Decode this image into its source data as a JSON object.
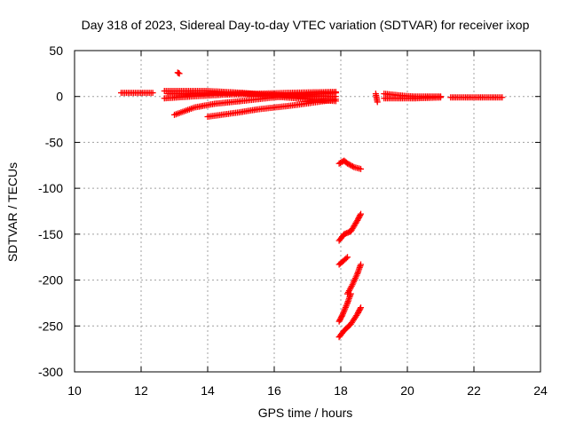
{
  "chart_data": {
    "type": "scatter",
    "title": "Day 318 of 2023, Sidereal Day-to-day VTEC variation (SDTVAR) for receiver ixop",
    "xlabel": "GPS time / hours",
    "ylabel": "SDTVAR / TECUs",
    "xlim": [
      10,
      24
    ],
    "ylim": [
      -300,
      50
    ],
    "xticks": [
      10,
      12,
      14,
      16,
      18,
      20,
      22,
      24
    ],
    "yticks": [
      50,
      0,
      -50,
      -100,
      -150,
      -200,
      -250,
      -300
    ],
    "grid": true,
    "marker": "plus",
    "color": "#ff0000",
    "segments": [
      {
        "x": [
          11.4,
          12.35
        ],
        "y": [
          4,
          4
        ]
      },
      {
        "x": [
          12.7,
          14.0,
          15.0,
          16.0,
          17.0,
          17.85
        ],
        "y": [
          6,
          6,
          4,
          0,
          -3,
          -5
        ]
      },
      {
        "x": [
          12.7,
          13.5,
          14.5,
          15.5,
          16.5,
          17.85
        ],
        "y": [
          -2,
          0,
          2,
          3,
          4,
          5
        ]
      },
      {
        "x": [
          12.8,
          14.0,
          15.0,
          15.8,
          16.5,
          17.85
        ],
        "y": [
          3,
          4,
          4,
          2,
          1,
          0
        ]
      },
      {
        "x": [
          13.0,
          13.6,
          14.2,
          15.0,
          16.0,
          17.0,
          17.85
        ],
        "y": [
          -20,
          -12,
          -8,
          -5,
          -1,
          2,
          4
        ]
      },
      {
        "x": [
          14.0,
          15.0,
          15.5,
          16.5,
          17.5,
          17.85
        ],
        "y": [
          -22,
          -17,
          -14,
          -10,
          -5,
          -3
        ]
      },
      {
        "x": [
          13.1,
          13.15
        ],
        "y": [
          26,
          25
        ]
      },
      {
        "x": [
          19.05,
          19.1
        ],
        "y": [
          3,
          -6
        ]
      },
      {
        "x": [
          19.3,
          19.8,
          20.2,
          20.6,
          21.0
        ],
        "y": [
          3,
          1,
          0,
          0,
          0
        ]
      },
      {
        "x": [
          19.3,
          19.8,
          20.2,
          21.0
        ],
        "y": [
          -2,
          -2,
          -2,
          -1
        ]
      },
      {
        "x": [
          21.3,
          21.5,
          21.8,
          22.0,
          22.3,
          22.5,
          22.7,
          22.85
        ],
        "y": [
          -1,
          -1,
          -1,
          -1,
          -1,
          -1,
          -1,
          -1
        ]
      },
      {
        "x": [
          17.95,
          18.1,
          18.2,
          18.4,
          18.6
        ],
        "y": [
          -73,
          -70,
          -73,
          -77,
          -79
        ]
      },
      {
        "x": [
          17.95,
          18.1,
          18.3,
          18.5,
          18.6
        ],
        "y": [
          -157,
          -150,
          -147,
          -135,
          -128
        ]
      },
      {
        "x": [
          17.95,
          18.05,
          18.2
        ],
        "y": [
          -183,
          -180,
          -175
        ]
      },
      {
        "x": [
          18.2,
          18.35,
          18.5,
          18.6
        ],
        "y": [
          -215,
          -205,
          -193,
          -183
        ]
      },
      {
        "x": [
          17.95,
          18.05,
          18.2,
          18.3
        ],
        "y": [
          -245,
          -238,
          -225,
          -215
        ]
      },
      {
        "x": [
          17.95,
          18.1,
          18.3,
          18.5,
          18.6
        ],
        "y": [
          -262,
          -255,
          -248,
          -237,
          -230
        ]
      }
    ]
  }
}
